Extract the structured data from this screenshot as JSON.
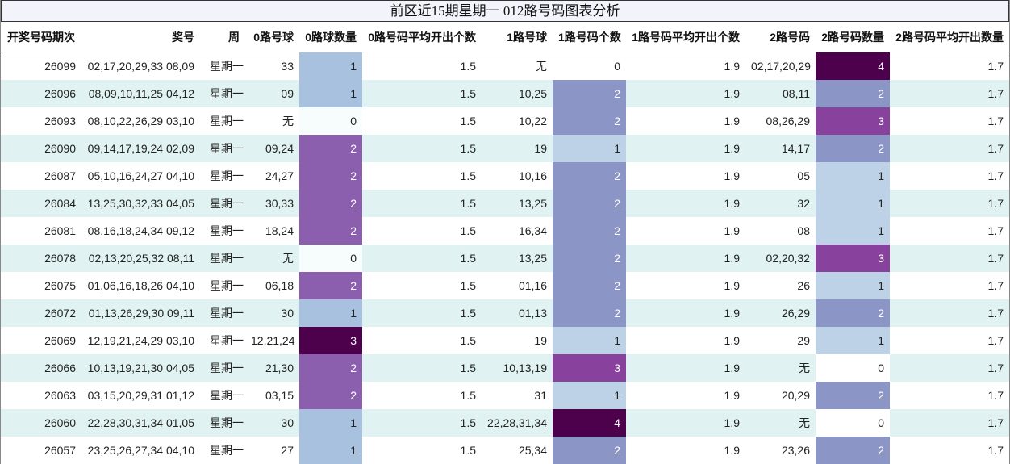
{
  "title": "前区近15期星期一 012路号码图表分析",
  "headers": [
    "开奖号码期次",
    "奖号",
    "周",
    "0路号球",
    "0路球数量",
    "0路号码平均开出个数",
    "1路号球",
    "1路号码个数",
    "1路号码平均开出个数",
    "2路号码",
    "2路号码数量",
    "2路号码平均开出数量"
  ],
  "heat_colors": {
    "0": "#f7fcfd",
    "1": "#a7c1de",
    "2": "#8c5fae",
    "3": "#4d004b"
  },
  "heat_colors_1": {
    "0": "#ffffff",
    "1": "#bdd2e6",
    "2": "#8c96c6",
    "3": "#88419d",
    "4": "#4d004b"
  },
  "heat_colors_2": {
    "0": "#ffffff",
    "1": "#bdd2e6",
    "2": "#8c96c6",
    "3": "#88419d",
    "4": "#4d004b"
  },
  "rows": [
    {
      "period": "26099",
      "numbers": "02,17,20,29,33 08,09",
      "week": "星期一",
      "r0": "33",
      "c0": "1",
      "a0": "1.5",
      "r1": "无",
      "c1": "0",
      "a1": "1.9",
      "r2": "02,17,20,29",
      "c2": "4",
      "a2": "1.7"
    },
    {
      "period": "26096",
      "numbers": "08,09,10,11,25 04,12",
      "week": "星期一",
      "r0": "09",
      "c0": "1",
      "a0": "1.5",
      "r1": "10,25",
      "c1": "2",
      "a1": "1.9",
      "r2": "08,11",
      "c2": "2",
      "a2": "1.7"
    },
    {
      "period": "26093",
      "numbers": "08,10,22,26,29 03,10",
      "week": "星期一",
      "r0": "无",
      "c0": "0",
      "a0": "1.5",
      "r1": "10,22",
      "c1": "2",
      "a1": "1.9",
      "r2": "08,26,29",
      "c2": "3",
      "a2": "1.7"
    },
    {
      "period": "26090",
      "numbers": "09,14,17,19,24 02,09",
      "week": "星期一",
      "r0": "09,24",
      "c0": "2",
      "a0": "1.5",
      "r1": "19",
      "c1": "1",
      "a1": "1.9",
      "r2": "14,17",
      "c2": "2",
      "a2": "1.7"
    },
    {
      "period": "26087",
      "numbers": "05,10,16,24,27 04,10",
      "week": "星期一",
      "r0": "24,27",
      "c0": "2",
      "a0": "1.5",
      "r1": "10,16",
      "c1": "2",
      "a1": "1.9",
      "r2": "05",
      "c2": "1",
      "a2": "1.7"
    },
    {
      "period": "26084",
      "numbers": "13,25,30,32,33 04,05",
      "week": "星期一",
      "r0": "30,33",
      "c0": "2",
      "a0": "1.5",
      "r1": "13,25",
      "c1": "2",
      "a1": "1.9",
      "r2": "32",
      "c2": "1",
      "a2": "1.7"
    },
    {
      "period": "26081",
      "numbers": "08,16,18,24,34 09,12",
      "week": "星期一",
      "r0": "18,24",
      "c0": "2",
      "a0": "1.5",
      "r1": "16,34",
      "c1": "2",
      "a1": "1.9",
      "r2": "08",
      "c2": "1",
      "a2": "1.7"
    },
    {
      "period": "26078",
      "numbers": "02,13,20,25,32 08,11",
      "week": "星期一",
      "r0": "无",
      "c0": "0",
      "a0": "1.5",
      "r1": "13,25",
      "c1": "2",
      "a1": "1.9",
      "r2": "02,20,32",
      "c2": "3",
      "a2": "1.7"
    },
    {
      "period": "26075",
      "numbers": "01,06,16,18,26 04,10",
      "week": "星期一",
      "r0": "06,18",
      "c0": "2",
      "a0": "1.5",
      "r1": "01,16",
      "c1": "2",
      "a1": "1.9",
      "r2": "26",
      "c2": "1",
      "a2": "1.7"
    },
    {
      "period": "26072",
      "numbers": "01,13,26,29,30 09,11",
      "week": "星期一",
      "r0": "30",
      "c0": "1",
      "a0": "1.5",
      "r1": "01,13",
      "c1": "2",
      "a1": "1.9",
      "r2": "26,29",
      "c2": "2",
      "a2": "1.7"
    },
    {
      "period": "26069",
      "numbers": "12,19,21,24,29 03,10",
      "week": "星期一",
      "r0": "12,21,24",
      "c0": "3",
      "a0": "1.5",
      "r1": "19",
      "c1": "1",
      "a1": "1.9",
      "r2": "29",
      "c2": "1",
      "a2": "1.7"
    },
    {
      "period": "26066",
      "numbers": "10,13,19,21,30 04,05",
      "week": "星期一",
      "r0": "21,30",
      "c0": "2",
      "a0": "1.5",
      "r1": "10,13,19",
      "c1": "3",
      "a1": "1.9",
      "r2": "无",
      "c2": "0",
      "a2": "1.7"
    },
    {
      "period": "26063",
      "numbers": "03,15,20,29,31 01,12",
      "week": "星期一",
      "r0": "03,15",
      "c0": "2",
      "a0": "1.5",
      "r1": "31",
      "c1": "1",
      "a1": "1.9",
      "r2": "20,29",
      "c2": "2",
      "a2": "1.7"
    },
    {
      "period": "26060",
      "numbers": "22,28,30,31,34 01,05",
      "week": "星期一",
      "r0": "30",
      "c0": "1",
      "a0": "1.5",
      "r1": "22,28,31,34",
      "c1": "4",
      "a1": "1.9",
      "r2": "无",
      "c2": "0",
      "a2": "1.7"
    },
    {
      "period": "26057",
      "numbers": "23,25,26,27,34 04,10",
      "week": "星期一",
      "r0": "27",
      "c0": "1",
      "a0": "1.5",
      "r1": "25,34",
      "c1": "2",
      "a1": "1.9",
      "r2": "23,26",
      "c2": "2",
      "a2": "1.7"
    }
  ]
}
